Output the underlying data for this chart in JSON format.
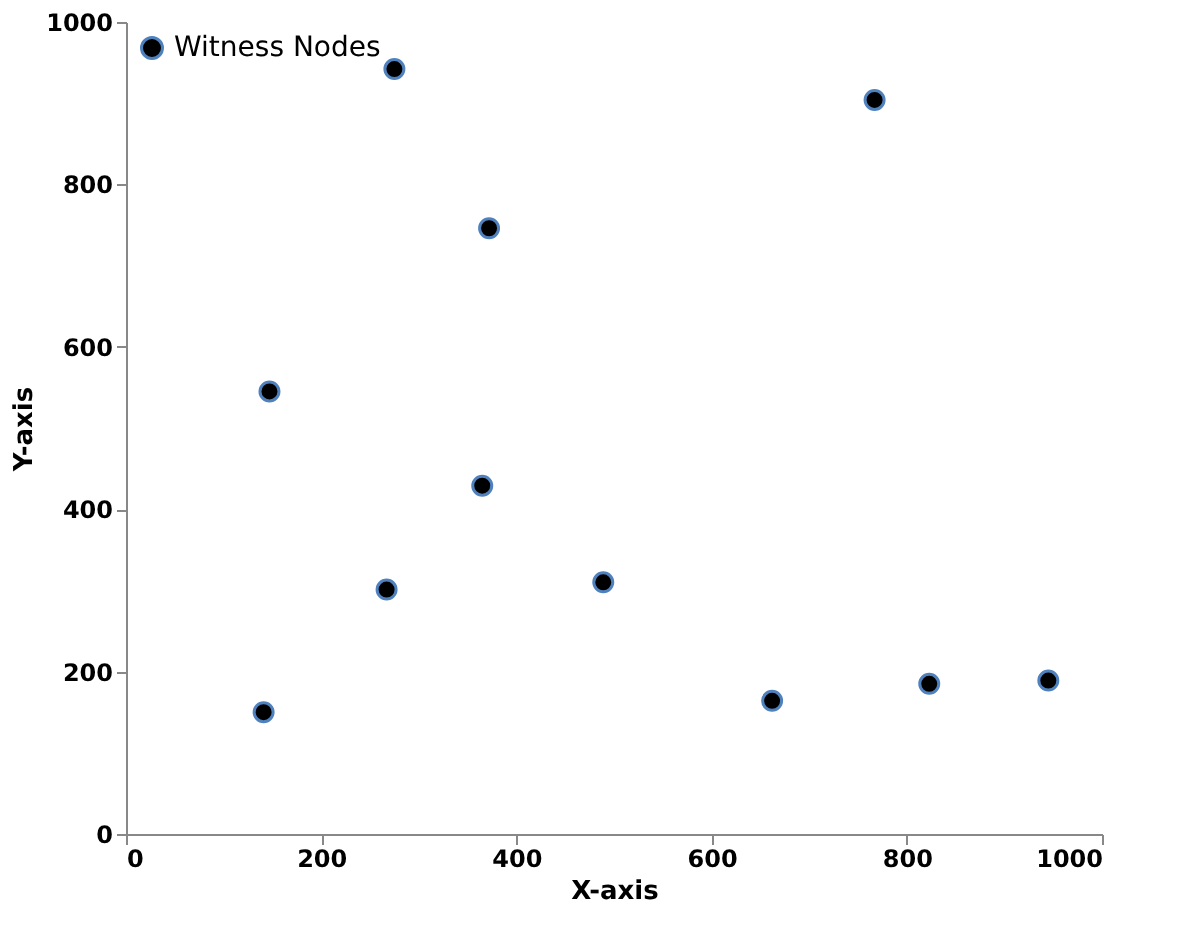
{
  "chart_data": {
    "type": "scatter",
    "xlabel": "X-axis",
    "ylabel": "Y-axis",
    "xlim": [
      0,
      1000
    ],
    "ylim": [
      0,
      1000
    ],
    "xticks": [
      0,
      200,
      400,
      600,
      800,
      1000
    ],
    "yticks": [
      0,
      200,
      400,
      600,
      800,
      1000
    ],
    "grid": false,
    "legend": "top left",
    "marker": "circle",
    "series": [
      {
        "name": "Witness Nodes",
        "color": "#000000",
        "x": [
          275,
          767,
          372,
          147,
          365,
          267,
          489,
          141,
          662,
          823,
          945
        ],
        "values": [
          942,
          904,
          746,
          545,
          429,
          301,
          310,
          150,
          164,
          185,
          189
        ]
      }
    ]
  }
}
